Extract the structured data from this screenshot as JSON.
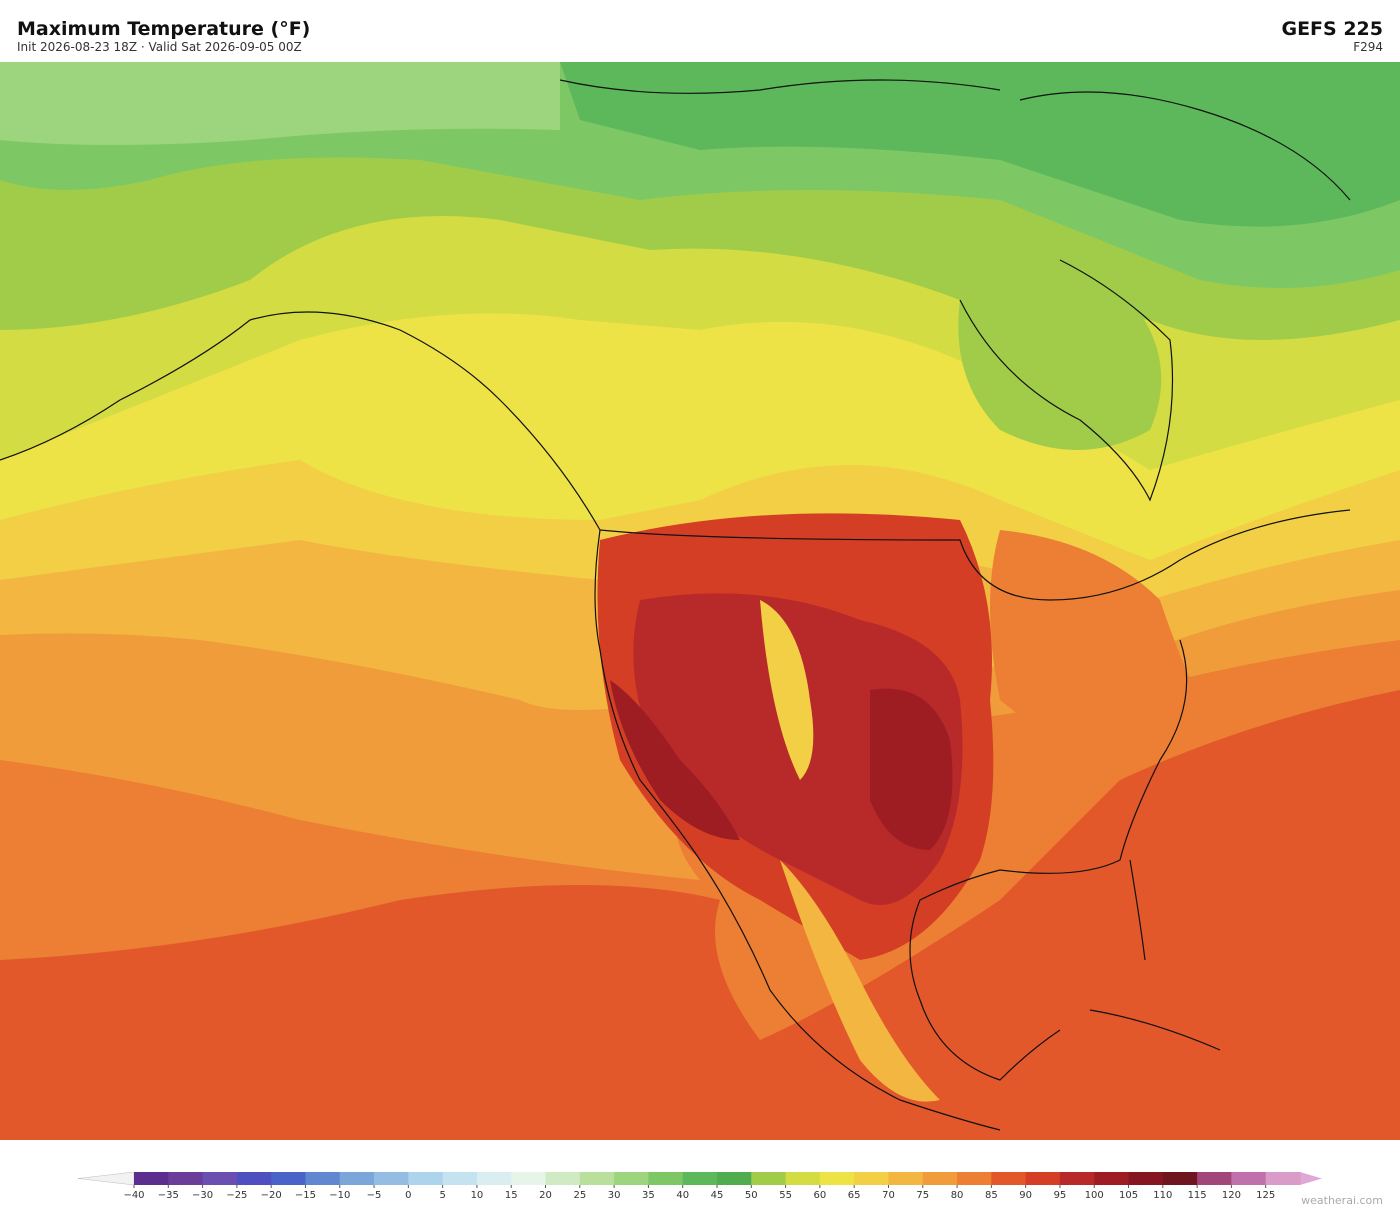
{
  "header": {
    "title": "Maximum Temperature  (°F)",
    "subtitle": "Init 2026-08-23 18Z   ·   Valid Sat 2026-09-05 00Z",
    "model": "GEFS  225",
    "forecast_hour": "F294"
  },
  "colorbar": {
    "range": [
      -40,
      130
    ],
    "ticks": [
      {
        "value": -40,
        "label": "−40"
      },
      {
        "value": -35,
        "label": "−35"
      },
      {
        "value": -30,
        "label": "−30"
      },
      {
        "value": -25,
        "label": "−25"
      },
      {
        "value": -20,
        "label": "−20"
      },
      {
        "value": -15,
        "label": "−15"
      },
      {
        "value": -10,
        "label": "−10"
      },
      {
        "value": -5,
        "label": "−5"
      },
      0,
      5,
      10,
      15,
      20,
      25,
      30,
      35,
      40,
      45,
      50,
      55,
      60,
      65,
      70,
      75,
      80,
      85,
      90,
      95,
      100,
      105,
      110,
      115,
      120,
      125
    ],
    "colors": [
      "#5b2d8e",
      "#6a3d9a",
      "#6b4fb0",
      "#4f4fc0",
      "#4a63c8",
      "#5f88d0",
      "#7aa6da",
      "#95bde3",
      "#aed3ec",
      "#c5e2f0",
      "#daeef2",
      "#e6f4ea",
      "#d0ebc4",
      "#b8e09c",
      "#9dd57e",
      "#7ec765",
      "#5cb85a",
      "#4fad4f",
      "#a0cc4a",
      "#d4dc43",
      "#ede347",
      "#f3cf45",
      "#f3b641",
      "#f19c3a",
      "#ec7f33",
      "#e2582a",
      "#d43e25",
      "#b8292a",
      "#9e1d22",
      "#851620",
      "#6e1520",
      "#a2467a",
      "#c071ab",
      "#d99cc8"
    ],
    "under_color": "#f2f2f2",
    "over_color": "#e0a8d6"
  },
  "watermark": "weatherai.com"
}
